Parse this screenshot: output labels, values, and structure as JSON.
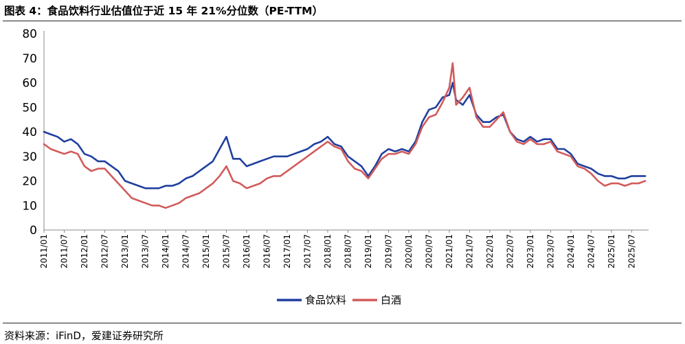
{
  "header": {
    "title": "图表 4：食品饮料行业估值位于近 15 年 21%分位数（PE-TTM）"
  },
  "footer": {
    "source": "资料来源：iFinD，爱建证券研究所"
  },
  "chart_data": {
    "type": "line",
    "title": "图表 4：食品饮料行业估值位于近 15 年 21%分位数（PE-TTM）",
    "xlabel": "",
    "ylabel": "",
    "ylim": [
      0,
      80
    ],
    "yticks": [
      0,
      10,
      20,
      30,
      40,
      50,
      60,
      70,
      80
    ],
    "x_tick_labels": [
      "2011/01",
      "2011/07",
      "2012/01",
      "2012/07",
      "2013/01",
      "2013/07",
      "2014/01",
      "2014/07",
      "2015/01",
      "2015/07",
      "2016/01",
      "2016/07",
      "2017/01",
      "2017/07",
      "2018/01",
      "2018/07",
      "2019/01",
      "2019/07",
      "2020/01",
      "2020/07",
      "2021/01",
      "2021/07",
      "2022/01",
      "2022/07",
      "2023/01",
      "2023/07",
      "2024/01",
      "2024/07",
      "2025/01",
      "2025/07"
    ],
    "grid": false,
    "legend": "bottom-center",
    "x": [
      "2011/01",
      "2011/03",
      "2011/05",
      "2011/07",
      "2011/09",
      "2011/11",
      "2012/01",
      "2012/03",
      "2012/05",
      "2012/07",
      "2012/09",
      "2012/11",
      "2013/01",
      "2013/03",
      "2013/05",
      "2013/07",
      "2013/09",
      "2013/11",
      "2014/01",
      "2014/03",
      "2014/05",
      "2014/07",
      "2014/09",
      "2014/11",
      "2015/01",
      "2015/03",
      "2015/05",
      "2015/07",
      "2015/09",
      "2015/11",
      "2016/01",
      "2016/03",
      "2016/05",
      "2016/07",
      "2016/09",
      "2016/11",
      "2017/01",
      "2017/03",
      "2017/05",
      "2017/07",
      "2017/09",
      "2017/11",
      "2018/01",
      "2018/03",
      "2018/05",
      "2018/07",
      "2018/09",
      "2018/11",
      "2019/01",
      "2019/03",
      "2019/05",
      "2019/07",
      "2019/09",
      "2019/11",
      "2020/01",
      "2020/03",
      "2020/05",
      "2020/07",
      "2020/09",
      "2020/11",
      "2021/01",
      "2021/02",
      "2021/03",
      "2021/05",
      "2021/07",
      "2021/09",
      "2021/11",
      "2022/01",
      "2022/03",
      "2022/05",
      "2022/07",
      "2022/09",
      "2022/11",
      "2023/01",
      "2023/03",
      "2023/05",
      "2023/07",
      "2023/09",
      "2023/11",
      "2024/01",
      "2024/03",
      "2024/05",
      "2024/07",
      "2024/09",
      "2024/11",
      "2025/01",
      "2025/03",
      "2025/05",
      "2025/07",
      "2025/09",
      "2025/11"
    ],
    "series": [
      {
        "name": "食品饮料",
        "color": "#1f3f9e",
        "values": [
          40,
          39,
          38,
          36,
          37,
          35,
          31,
          30,
          28,
          28,
          26,
          24,
          20,
          19,
          18,
          17,
          17,
          17,
          18,
          18,
          19,
          21,
          22,
          24,
          26,
          28,
          33,
          38,
          29,
          29,
          26,
          27,
          28,
          29,
          30,
          30,
          30,
          31,
          32,
          33,
          35,
          36,
          38,
          35,
          34,
          30,
          28,
          26,
          22,
          26,
          31,
          33,
          32,
          33,
          32,
          36,
          44,
          49,
          50,
          54,
          55,
          60,
          53,
          51,
          55,
          47,
          44,
          44,
          46,
          47,
          40,
          37,
          36,
          38,
          36,
          37,
          37,
          33,
          33,
          31,
          27,
          26,
          25,
          23,
          22,
          22,
          21,
          21,
          22,
          22,
          22
        ]
      },
      {
        "name": "白酒",
        "color": "#d25a5a",
        "values": [
          35,
          33,
          32,
          31,
          32,
          31,
          26,
          24,
          25,
          25,
          22,
          19,
          16,
          13,
          12,
          11,
          10,
          10,
          9,
          10,
          11,
          13,
          14,
          15,
          17,
          19,
          22,
          26,
          20,
          19,
          17,
          18,
          19,
          21,
          22,
          22,
          24,
          26,
          28,
          30,
          32,
          34,
          36,
          34,
          33,
          28,
          25,
          24,
          21,
          25,
          29,
          31,
          31,
          32,
          31,
          35,
          42,
          46,
          47,
          52,
          58,
          68,
          51,
          54,
          58,
          46,
          42,
          42,
          45,
          48,
          40,
          36,
          35,
          37,
          35,
          35,
          36,
          32,
          31,
          30,
          26,
          25,
          23,
          20,
          18,
          19,
          19,
          18,
          19,
          19,
          20
        ]
      }
    ]
  }
}
